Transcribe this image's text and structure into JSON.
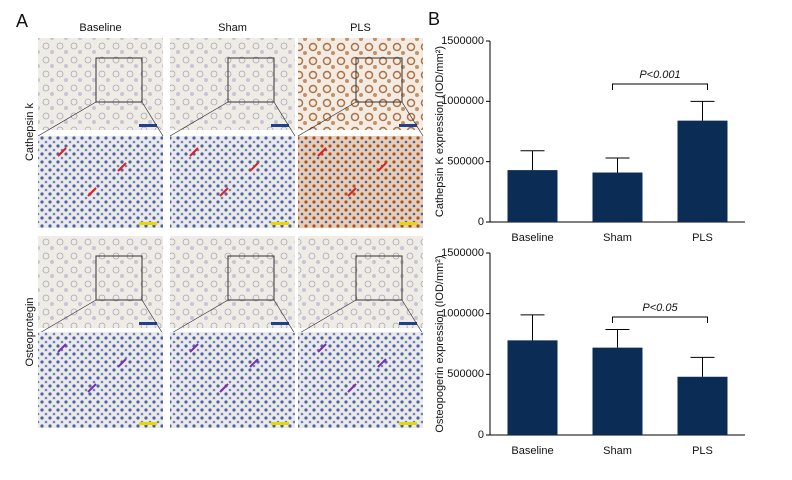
{
  "panel_labels": [
    "A",
    "B"
  ],
  "columns": [
    "Baseline",
    "Sham",
    "PLS"
  ],
  "rows": [
    "Cathepsin k",
    "Osteoprotegin"
  ],
  "chart_data": [
    {
      "type": "bar",
      "ylabel": "Cathepsin K expression (IOD/mm²)",
      "categories": [
        "Baseline",
        "Sham",
        "PLS"
      ],
      "values": [
        430000,
        410000,
        840000
      ],
      "errors": [
        160000,
        120000,
        160000
      ],
      "color": "#0b2c55",
      "ylim": [
        0,
        1500000
      ],
      "yticks": [
        0,
        500000,
        1000000,
        1500000
      ],
      "annotation": "P<0.001"
    },
    {
      "type": "bar",
      "ylabel": "Osteopogerin expression (IOD/mm²)",
      "categories": [
        "Baseline",
        "Sham",
        "PLS"
      ],
      "values": [
        780000,
        720000,
        480000
      ],
      "errors": [
        210000,
        150000,
        160000
      ],
      "color": "#0b2c55",
      "ylim": [
        0,
        1500000
      ],
      "yticks": [
        0,
        500000,
        1000000,
        1500000
      ],
      "annotation": "P<0.05"
    }
  ]
}
